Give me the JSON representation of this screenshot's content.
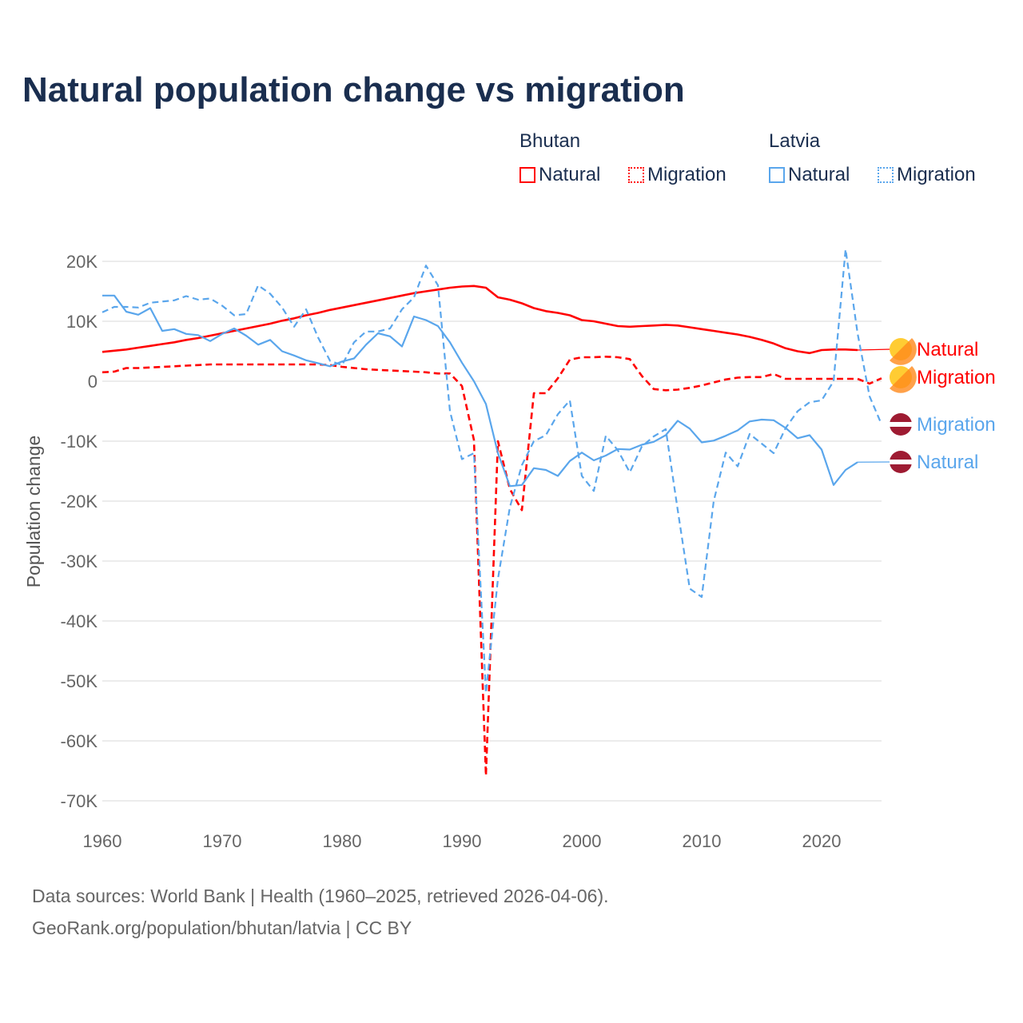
{
  "chart_data": {
    "type": "line",
    "title": "Natural population change vs migration",
    "ylabel": "Population change",
    "xlabel": "",
    "xlim": [
      1960,
      2025
    ],
    "ylim": [
      -70000,
      20000
    ],
    "xticks": [
      "1960",
      "1970",
      "1980",
      "1990",
      "2000",
      "2010",
      "2020"
    ],
    "yticks": [
      "20K",
      "10K",
      "0",
      "-10K",
      "-20K",
      "-30K",
      "-40K",
      "-50K",
      "-60K",
      "-70K"
    ],
    "grid": true,
    "legend": {
      "placement": "top-right",
      "groups": [
        {
          "name": "Bhutan",
          "items": [
            "Natural",
            "Migration"
          ]
        },
        {
          "name": "Latvia",
          "items": [
            "Natural",
            "Migration"
          ]
        }
      ]
    },
    "start_year": 1960,
    "series": [
      {
        "name": "Natural",
        "country": "Bhutan",
        "color": "#ff0000",
        "dash": false,
        "label": "Natural",
        "values": [
          4900,
          5100,
          5300,
          5600,
          5900,
          6200,
          6500,
          6900,
          7200,
          7600,
          8000,
          8400,
          8800,
          9200,
          9600,
          10100,
          10500,
          11000,
          11400,
          11900,
          12300,
          12700,
          13100,
          13500,
          13900,
          14300,
          14700,
          15000,
          15300,
          15600,
          15800,
          15900,
          15600,
          14000,
          13600,
          13000,
          12200,
          11700,
          11400,
          11000,
          10200,
          10000,
          9600,
          9200,
          9100,
          9200,
          9300,
          9400,
          9300,
          9000,
          8700,
          8400,
          8100,
          7800,
          7400,
          6900,
          6300,
          5500,
          5000,
          4700,
          5200,
          5300,
          5300,
          5200
        ]
      },
      {
        "name": "Migration",
        "country": "Bhutan",
        "color": "#ff0000",
        "dash": true,
        "label": "Migration",
        "values": [
          1500,
          1600,
          2200,
          2200,
          2300,
          2400,
          2500,
          2600,
          2700,
          2800,
          2800,
          2800,
          2800,
          2800,
          2800,
          2800,
          2800,
          2800,
          2800,
          2700,
          2400,
          2200,
          2000,
          1900,
          1800,
          1700,
          1600,
          1500,
          1300,
          1300,
          -800,
          -9800,
          -65800,
          -10000,
          -18000,
          -21500,
          -2000,
          -2000,
          500,
          3600,
          4000,
          4000,
          4100,
          4000,
          3700,
          900,
          -1300,
          -1500,
          -1400,
          -1100,
          -700,
          -200,
          300,
          600,
          700,
          700,
          1200,
          400,
          400,
          400,
          400,
          400,
          400,
          400,
          -400,
          500
        ]
      },
      {
        "name": "Natural",
        "country": "Latvia",
        "color": "#5aa6ec",
        "dash": false,
        "label": "Natural",
        "values": [
          14300,
          14300,
          11600,
          11100,
          12200,
          8400,
          8700,
          7900,
          7700,
          6700,
          7900,
          8800,
          7600,
          6100,
          6900,
          5000,
          4300,
          3500,
          3000,
          2500,
          3300,
          3800,
          6100,
          8000,
          7500,
          5800,
          10800,
          10200,
          9200,
          6500,
          3100,
          0,
          -3800,
          -12000,
          -17500,
          -17300,
          -14500,
          -14800,
          -15800,
          -13300,
          -11900,
          -13200,
          -12400,
          -11300,
          -11400,
          -10600,
          -10100,
          -9000,
          -6600,
          -7900,
          -10200,
          -9900,
          -9100,
          -8200,
          -6700,
          -6400,
          -6500,
          -7800,
          -9500,
          -9000,
          -11400,
          -17300,
          -14800,
          -13500
        ]
      },
      {
        "name": "Migration",
        "country": "Latvia",
        "color": "#5aa6ec",
        "dash": true,
        "label": "Migration",
        "values": [
          11500,
          12400,
          12400,
          12300,
          13100,
          13300,
          13500,
          14200,
          13600,
          13800,
          12600,
          11000,
          11200,
          16000,
          14600,
          12300,
          9100,
          12000,
          7300,
          3400,
          2700,
          6500,
          8300,
          8300,
          8800,
          12000,
          14000,
          19300,
          16000,
          -5000,
          -13000,
          -12000,
          -52000,
          -33000,
          -21000,
          -14000,
          -10000,
          -9000,
          -5500,
          -3200,
          -15800,
          -18300,
          -9100,
          -11500,
          -15200,
          -10900,
          -9200,
          -8000,
          -21500,
          -34600,
          -36000,
          -20000,
          -11900,
          -14200,
          -8800,
          -10400,
          -12000,
          -7800,
          -5000,
          -3500,
          -3200,
          0,
          22000,
          8000,
          -2500,
          -7200
        ]
      }
    ]
  },
  "legend": {
    "bhutan": "Bhutan",
    "latvia": "Latvia",
    "natural": "Natural",
    "migration": "Migration"
  },
  "footer": {
    "line1": "Data sources: World Bank | Health (1960–2025, retrieved 2026-04-06).",
    "line2": "GeoRank.org/population/bhutan/latvia | CC BY"
  },
  "colors": {
    "bhutan": "#ff0000",
    "latvia": "#5aa6ec",
    "title": "#1a2e4f"
  }
}
